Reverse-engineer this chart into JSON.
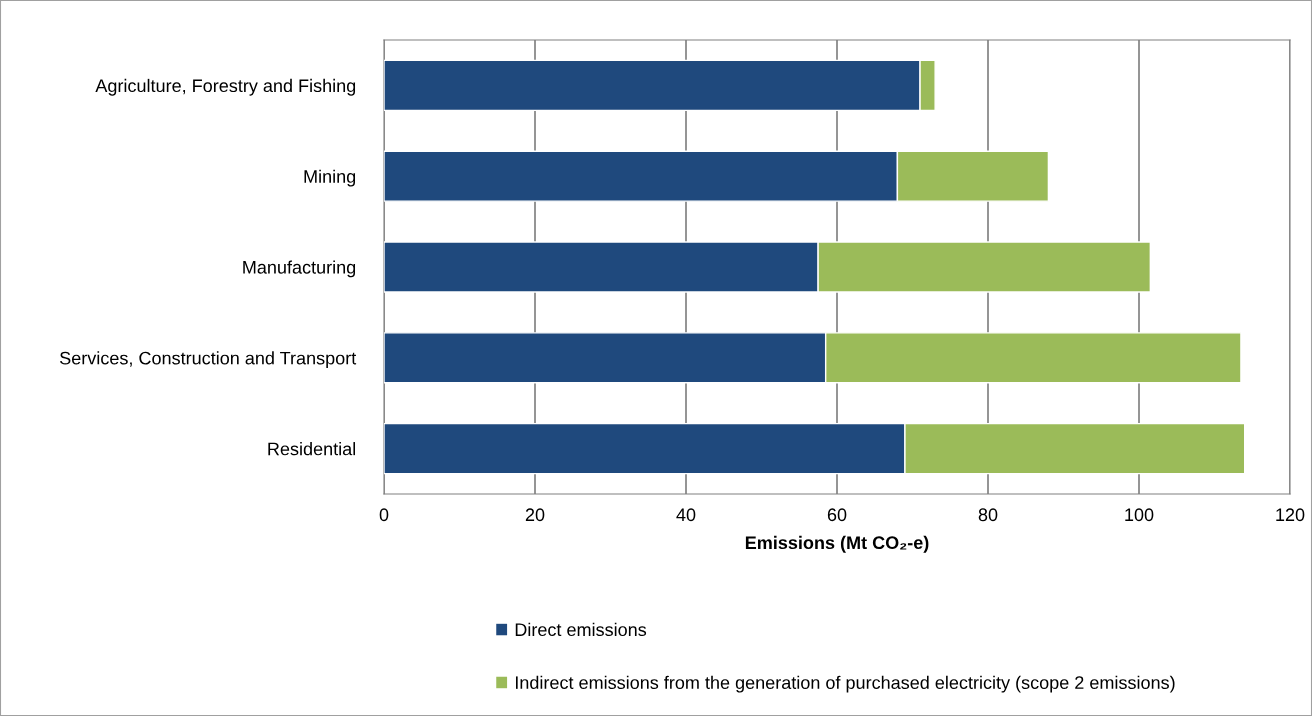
{
  "chart_data": {
    "type": "bar",
    "orientation": "horizontal",
    "stacked": true,
    "categories": [
      "Agriculture, Forestry and Fishing",
      "Mining",
      "Manufacturing",
      "Services, Construction and Transport",
      "Residential"
    ],
    "series": [
      {
        "name": "Direct emissions",
        "color": "#1f497d",
        "values": [
          71,
          68,
          57.5,
          58.5,
          69
        ]
      },
      {
        "name": "Indirect emissions from the generation of purchased electricity (scope 2 emissions)",
        "color": "#9bbb59",
        "values": [
          2,
          20,
          44,
          55,
          45
        ]
      }
    ],
    "xlabel": "Emissions (Mt CO₂-e)",
    "xlim": [
      0,
      120
    ],
    "xticks": [
      0,
      20,
      40,
      60,
      80,
      100,
      120
    ],
    "grid": "x",
    "legend": "bottom"
  }
}
